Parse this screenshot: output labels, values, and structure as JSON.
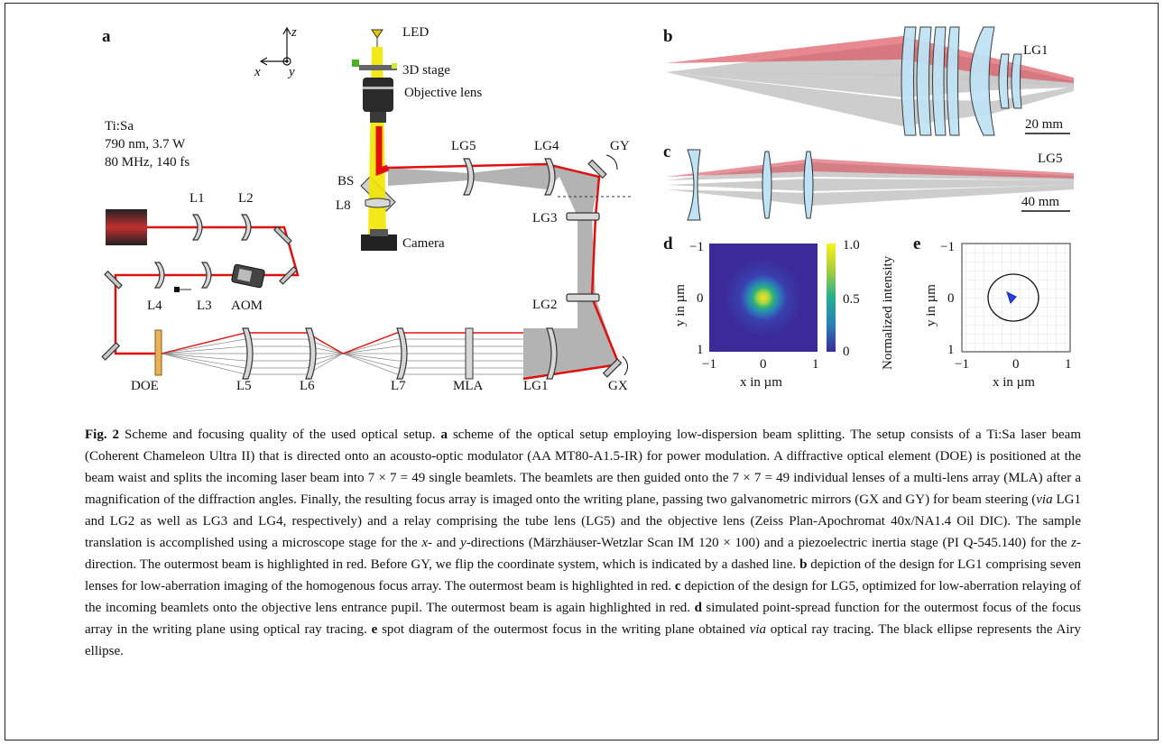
{
  "panels": {
    "a": "a",
    "b": "b",
    "c": "c",
    "d": "d",
    "e": "e"
  },
  "axes": {
    "z": "z",
    "x": "x",
    "y": "y"
  },
  "laser": {
    "name": "Ti:Sa",
    "spec1": "790 nm, 3.7 W",
    "spec2": "80 MHz, 140 fs"
  },
  "components": {
    "LED": "LED",
    "stage3d": "3D stage",
    "objective": "Objective lens",
    "BS": "BS",
    "L8": "L8",
    "camera": "Camera",
    "L1": "L1",
    "L2": "L2",
    "L3": "L3",
    "L4": "L4",
    "AOM": "AOM",
    "DOE": "DOE",
    "L5": "L5",
    "L6": "L6",
    "L7": "L7",
    "MLA": "MLA",
    "LG1": "LG1",
    "LG2": "LG2",
    "LG3": "LG3",
    "LG4": "LG4",
    "LG5": "LG5",
    "GX": "GX",
    "GY": "GY"
  },
  "panel_b": {
    "title": "LG1",
    "scale": "20 mm"
  },
  "panel_c": {
    "title": "LG5",
    "scale": "40 mm"
  },
  "panel_d": {
    "ylabel": "y in µm",
    "xlabel": "x in µm",
    "xticks": [
      "−1",
      "0",
      "1"
    ],
    "yticks": [
      "−1",
      "0",
      "1"
    ],
    "colorbar_label": "Normalized intensity",
    "colorbar_ticks": [
      "1.0",
      "0.5",
      "0"
    ]
  },
  "panel_e": {
    "ylabel": "y in µm",
    "xlabel": "x in µm",
    "xticks": [
      "−1",
      "0",
      "1"
    ],
    "yticks": [
      "−1",
      "0",
      "1"
    ]
  },
  "colors": {
    "beam": "#e01010",
    "gray_beam": "#9a9a9a",
    "led": "#f2e600",
    "lens": "#bfe3f5"
  },
  "caption": {
    "fig_label": "Fig. 2",
    "s1": " Scheme and focusing quality of the used optical setup. ",
    "a": "a",
    "s2": " scheme of the optical setup employing low-dispersion beam splitting. The setup consists of a Ti:Sa laser beam (Coherent Chameleon Ultra II) that is directed onto an acousto-optic modulator (AA MT80-A1.5-IR) for power modulation. A diffractive optical element (DOE) is positioned at the beam waist and splits the incoming laser beam into 7 × 7 = 49 single beamlets. The beamlets are then guided onto the 7 × 7 = 49 individual lenses of a multi-lens array (MLA) after a magnification of the diffraction angles. Finally, the resulting focus array is imaged onto the writing plane, passing two galvanometric mirrors (GX and GY) for beam steering (",
    "via1": "via",
    "s3": " LG1 and LG2 as well as LG3 and LG4, respectively) and a relay comprising the tube lens (LG5) and the objective lens (Zeiss Plan-Apochromat 40x/NA1.4 Oil DIC). The sample translation is accomplished using a microscope stage for the ",
    "x": "x",
    "s4": "- and ",
    "y": "y",
    "s5": "-directions (Märzhäuser-Wetzlar Scan IM 120 × 100) and a piezoelectric inertia stage (PI Q-545.140) for the ",
    "z": "z",
    "s6": "-direction. The outermost beam is highlighted in red. Before GY, we flip the coordinate system, which is indicated by a dashed line. ",
    "b": "b",
    "s7": " depiction of the design for LG1 comprising seven lenses for low-aberration imaging of the homogenous focus array. The outermost beam is highlighted in red. ",
    "c": "c",
    "s8": " depiction of the design for LG5, optimized for low-aberration relaying of the incoming beamlets onto the objective lens entrance pupil. The outermost beam is again highlighted in red. ",
    "d": "d",
    "s9": " simulated point-spread function for the outermost focus of the focus array in the writing plane using optical ray tracing. ",
    "e": "e",
    "s10": " spot diagram of the outermost focus in the writing plane obtained ",
    "via2": "via",
    "s11": " optical ray tracing. The black ellipse represents the Airy ellipse."
  }
}
